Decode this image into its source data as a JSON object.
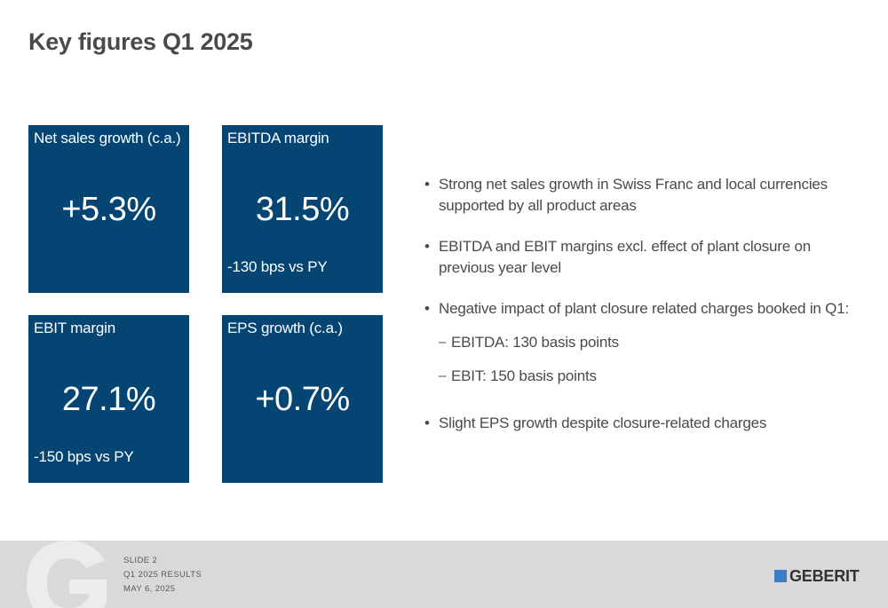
{
  "slide": {
    "title": "Key figures Q1 2025"
  },
  "tiles": [
    {
      "label": "Net sales growth (c.a.)",
      "value": "+5.3%",
      "sub": ""
    },
    {
      "label": "EBITDA margin",
      "value": "31.5%",
      "sub": "-130 bps vs PY"
    },
    {
      "label": "EBIT margin",
      "value": "27.1%",
      "sub": "-150 bps vs PY"
    },
    {
      "label": "EPS growth (c.a.)",
      "value": "+0.7%",
      "sub": ""
    }
  ],
  "bullets": {
    "b1": {
      "line1": "Strong net sales growth in Swiss Franc and local currencies",
      "line2": "supported by all product areas"
    },
    "b2": {
      "line1": "EBITDA and EBIT margins excl. effect of plant closure on",
      "line2": "previous year level"
    },
    "b3": {
      "line1": "Negative impact of plant closure related charges booked in Q1:"
    },
    "sub1": "EBITDA: 130 basis points",
    "sub2": "EBIT: 150 basis points",
    "b4": {
      "line1": "Slight EPS growth despite closure-related charges"
    }
  },
  "footer": {
    "slide_label": "SLIDE 2",
    "report": "Q1 2025 RESULTS",
    "date": "MAY 6, 2025",
    "logo": "GEBERIT",
    "logo_color": "#3d7cc9"
  },
  "colors": {
    "tile": "#044573",
    "text": "#4a4a4a",
    "footer": "#d9d9d9"
  }
}
